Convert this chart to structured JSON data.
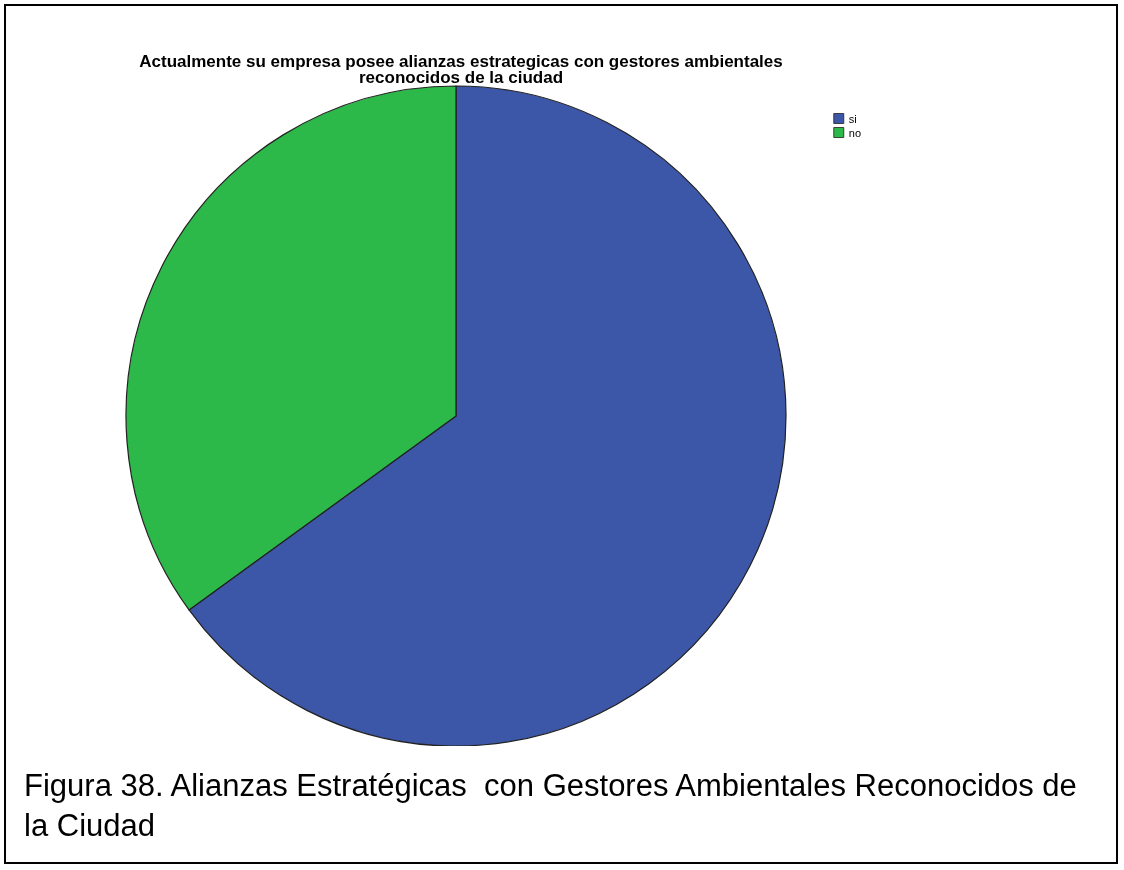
{
  "chart_data": {
    "type": "pie",
    "title": "Actualmente su empresa posee alianzas estrategicas con gestores ambientales\nreconocidos de la ciudad",
    "categories": [
      "si",
      "no"
    ],
    "values": [
      65,
      35
    ],
    "colors": [
      "#3d57a8",
      "#2db84a"
    ],
    "legend": "top right",
    "annotations": [
      "Figura 38. Alianzas Estratégicas  con Gestores Ambientales Reconocidos de la Ciudad"
    ]
  }
}
